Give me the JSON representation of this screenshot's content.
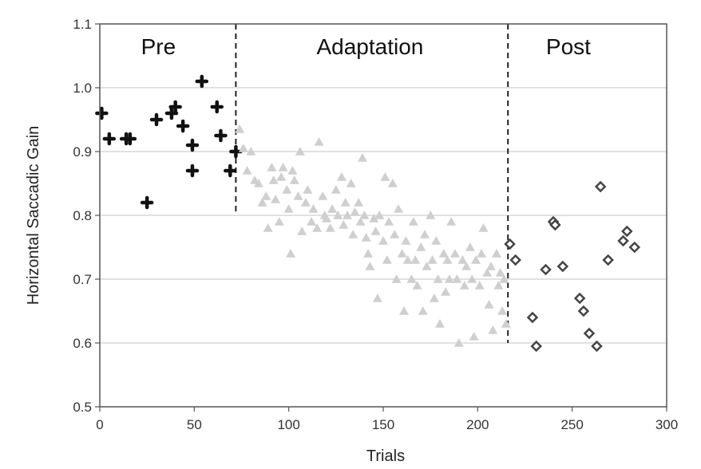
{
  "chart_data": {
    "type": "scatter",
    "xlabel": "Trials",
    "ylabel": "Horizontal Saccadic Gain",
    "xlim": [
      0,
      300
    ],
    "ylim": [
      0.5,
      1.1
    ],
    "xticks": [
      0,
      50,
      100,
      150,
      200,
      250,
      300
    ],
    "yticks": [
      0.5,
      0.6,
      0.7,
      0.8,
      0.9,
      1.0,
      1.1
    ],
    "xtick_labels": [
      "0",
      "50",
      "100",
      "150",
      "200",
      "250",
      "300"
    ],
    "ytick_labels": [
      "0.5",
      "0.6",
      "0.7",
      "0.8",
      "0.9",
      "1.0",
      "1.1"
    ],
    "grid": "horizontal",
    "phase_boundaries": [
      {
        "x": 72,
        "y_top": 0.8
      },
      {
        "x": 216,
        "y_top": 0.6
      }
    ],
    "phases": [
      {
        "label": "Pre",
        "x_center": 31,
        "y": 1.065
      },
      {
        "label": "Adaptation",
        "x_center": 143,
        "y": 1.065
      },
      {
        "label": "Post",
        "x_center": 248,
        "y": 1.065
      }
    ],
    "series": [
      {
        "marker": "cross",
        "color": "#111111",
        "points": [
          [
            1,
            0.96
          ],
          [
            5,
            0.92
          ],
          [
            14,
            0.92
          ],
          [
            16,
            0.92
          ],
          [
            25,
            0.82
          ],
          [
            30,
            0.95
          ],
          [
            38,
            0.96
          ],
          [
            40,
            0.97
          ],
          [
            44,
            0.94
          ],
          [
            49,
            0.91
          ],
          [
            49,
            0.87
          ],
          [
            54,
            1.01
          ],
          [
            62,
            0.97
          ],
          [
            64,
            0.925
          ],
          [
            69,
            0.87
          ],
          [
            72,
            0.9
          ]
        ]
      },
      {
        "marker": "triangle",
        "color": "#cfcfcf",
        "points": [
          [
            74,
            0.935
          ],
          [
            76,
            0.905
          ],
          [
            78,
            0.87
          ],
          [
            80,
            0.9
          ],
          [
            82,
            0.855
          ],
          [
            84,
            0.85
          ],
          [
            86,
            0.82
          ],
          [
            88,
            0.83
          ],
          [
            89,
            0.78
          ],
          [
            91,
            0.875
          ],
          [
            92,
            0.855
          ],
          [
            93,
            0.825
          ],
          [
            95,
            0.79
          ],
          [
            96,
            0.86
          ],
          [
            97,
            0.875
          ],
          [
            99,
            0.84
          ],
          [
            100,
            0.81
          ],
          [
            101,
            0.74
          ],
          [
            102,
            0.87
          ],
          [
            103,
            0.855
          ],
          [
            105,
            0.83
          ],
          [
            106,
            0.9
          ],
          [
            107,
            0.775
          ],
          [
            109,
            0.82
          ],
          [
            110,
            0.84
          ],
          [
            112,
            0.79
          ],
          [
            113,
            0.81
          ],
          [
            115,
            0.78
          ],
          [
            116,
            0.915
          ],
          [
            118,
            0.83
          ],
          [
            119,
            0.8
          ],
          [
            120,
            0.795
          ],
          [
            122,
            0.78
          ],
          [
            123,
            0.81
          ],
          [
            125,
            0.84
          ],
          [
            126,
            0.8
          ],
          [
            128,
            0.86
          ],
          [
            129,
            0.785
          ],
          [
            130,
            0.82
          ],
          [
            131,
            0.8
          ],
          [
            133,
            0.85
          ],
          [
            134,
            0.77
          ],
          [
            135,
            0.805
          ],
          [
            137,
            0.82
          ],
          [
            138,
            0.79
          ],
          [
            139,
            0.89
          ],
          [
            140,
            0.8
          ],
          [
            141,
            0.765
          ],
          [
            142,
            0.74
          ],
          [
            143,
            0.72
          ],
          [
            145,
            0.795
          ],
          [
            146,
            0.775
          ],
          [
            147,
            0.67
          ],
          [
            148,
            0.8
          ],
          [
            150,
            0.76
          ],
          [
            151,
            0.86
          ],
          [
            152,
            0.73
          ],
          [
            153,
            0.79
          ],
          [
            155,
            0.85
          ],
          [
            156,
            0.77
          ],
          [
            157,
            0.7
          ],
          [
            158,
            0.81
          ],
          [
            160,
            0.74
          ],
          [
            161,
            0.65
          ],
          [
            162,
            0.76
          ],
          [
            163,
            0.73
          ],
          [
            165,
            0.7
          ],
          [
            166,
            0.79
          ],
          [
            167,
            0.73
          ],
          [
            168,
            0.69
          ],
          [
            170,
            0.75
          ],
          [
            171,
            0.65
          ],
          [
            172,
            0.77
          ],
          [
            173,
            0.72
          ],
          [
            175,
            0.8
          ],
          [
            176,
            0.73
          ],
          [
            177,
            0.67
          ],
          [
            178,
            0.76
          ],
          [
            179,
            0.7
          ],
          [
            180,
            0.63
          ],
          [
            182,
            0.74
          ],
          [
            183,
            0.68
          ],
          [
            184,
            0.73
          ],
          [
            185,
            0.7
          ],
          [
            186,
            0.79
          ],
          [
            188,
            0.74
          ],
          [
            189,
            0.7
          ],
          [
            190,
            0.6
          ],
          [
            192,
            0.73
          ],
          [
            193,
            0.69
          ],
          [
            194,
            0.72
          ],
          [
            196,
            0.75
          ],
          [
            197,
            0.7
          ],
          [
            198,
            0.61
          ],
          [
            199,
            0.73
          ],
          [
            201,
            0.69
          ],
          [
            202,
            0.74
          ],
          [
            203,
            0.78
          ],
          [
            205,
            0.71
          ],
          [
            206,
            0.66
          ],
          [
            207,
            0.72
          ],
          [
            208,
            0.62
          ],
          [
            210,
            0.74
          ],
          [
            211,
            0.69
          ],
          [
            212,
            0.71
          ],
          [
            213,
            0.65
          ],
          [
            214,
            0.7
          ],
          [
            215,
            0.63
          ]
        ]
      },
      {
        "marker": "diamond",
        "color": "#444444",
        "points": [
          [
            217,
            0.755
          ],
          [
            220,
            0.73
          ],
          [
            229,
            0.64
          ],
          [
            231,
            0.595
          ],
          [
            236,
            0.715
          ],
          [
            240,
            0.79
          ],
          [
            241,
            0.785
          ],
          [
            245,
            0.72
          ],
          [
            254,
            0.67
          ],
          [
            256,
            0.65
          ],
          [
            259,
            0.615
          ],
          [
            263,
            0.595
          ],
          [
            265,
            0.845
          ],
          [
            269,
            0.73
          ],
          [
            277,
            0.76
          ],
          [
            279,
            0.775
          ],
          [
            283,
            0.75
          ]
        ]
      }
    ]
  }
}
